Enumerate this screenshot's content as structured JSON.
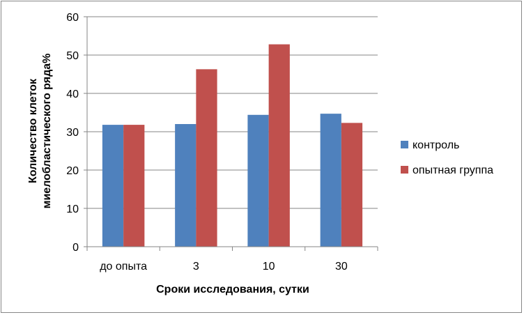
{
  "chart_data": {
    "type": "bar",
    "categories": [
      "до опыта",
      "3",
      "10",
      "30"
    ],
    "series": [
      {
        "name": "контроль",
        "values": [
          31.8,
          32.0,
          34.4,
          34.7
        ],
        "color": "#4F81BD"
      },
      {
        "name": "опытная группа",
        "values": [
          31.8,
          46.3,
          52.8,
          32.3
        ],
        "color": "#C0504D"
      }
    ],
    "title": "",
    "xlabel": "Сроки исследования, сутки",
    "ylabel_lines": [
      "Количество клеток",
      "миелобластического ряда%"
    ],
    "ylim": [
      0,
      60
    ],
    "yticks": [
      0,
      10,
      20,
      30,
      40,
      50,
      60
    ],
    "grid": true,
    "legend_position": "right"
  }
}
